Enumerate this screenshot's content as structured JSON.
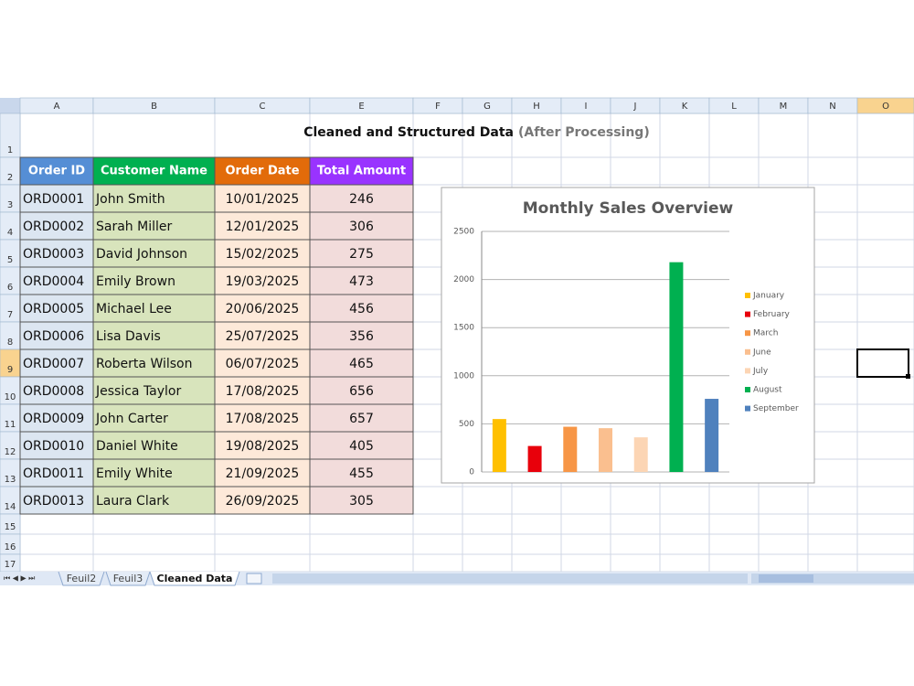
{
  "sheet": {
    "columns": [
      "A",
      "B",
      "C",
      "E",
      "F",
      "G",
      "H",
      "I",
      "J",
      "K",
      "L",
      "M",
      "N",
      "O"
    ],
    "rows": [
      1,
      2,
      3,
      4,
      5,
      6,
      7,
      8,
      9,
      10,
      11,
      12,
      13,
      14,
      15,
      16,
      17
    ],
    "title": "Cleaned and Structured Data",
    "subtitle": "(After Processing)",
    "table": {
      "header": [
        "Order ID",
        "Customer Name",
        "Order Date",
        "Total Amount"
      ],
      "rows": [
        [
          "ORD0001",
          "John Smith",
          "10/01/2025",
          246
        ],
        [
          "ORD0002",
          "Sarah Miller",
          "12/01/2025",
          306
        ],
        [
          "ORD0003",
          "David Johnson",
          "15/02/2025",
          275
        ],
        [
          "ORD0004",
          "Emily Brown",
          "19/03/2025",
          473
        ],
        [
          "ORD0005",
          "Michael Lee",
          "20/06/2025",
          456
        ],
        [
          "ORD0006",
          "Lisa Davis",
          "25/07/2025",
          356
        ],
        [
          "ORD0007",
          "Roberta Wilson",
          "06/07/2025",
          465
        ],
        [
          "ORD0008",
          "Jessica Taylor",
          "17/08/2025",
          656
        ],
        [
          "ORD0009",
          "John Carter",
          "17/08/2025",
          657
        ],
        [
          "ORD0010",
          "Daniel White",
          "19/08/2025",
          405
        ],
        [
          "ORD0011",
          "Emily White",
          "21/09/2025",
          455
        ],
        [
          "ORD0013",
          "Laura Clark",
          "26/09/2025",
          305
        ]
      ]
    },
    "tabs": [
      "Feuil2",
      "Feuil3",
      "Cleaned Data"
    ]
  },
  "chart_data": {
    "type": "bar",
    "title": "Monthly Sales Overview",
    "categories": [
      "January",
      "February",
      "March",
      "June",
      "July",
      "August",
      "September"
    ],
    "values": [
      550,
      270,
      470,
      455,
      360,
      2180,
      760
    ],
    "colors": [
      "#ffc000",
      "#e8000b",
      "#f79646",
      "#fabf8f",
      "#fcd5b4",
      "#00b050",
      "#4f81bd"
    ],
    "ylim": [
      0,
      2500
    ],
    "yticks": [
      0,
      500,
      1000,
      1500,
      2000,
      2500
    ],
    "grid": true,
    "legend": "right"
  }
}
